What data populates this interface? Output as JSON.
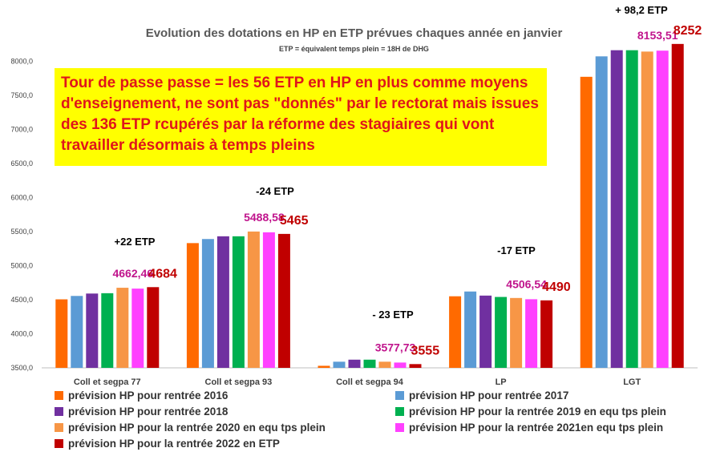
{
  "title": "Evolution des dotations en HP en ETP prévues chaques année en janvier",
  "subtitle": "ETP = équivalent temps plein = 18H de DHG",
  "note": "Tour de passe passe =  les 56 ETP en HP en plus comme moyens d'enseignement, ne sont pas \"donnés\" par le rectorat mais issues des 136 ETP rcupérés par la réforme des stagiaires qui vont travailler désormais à temps pleins",
  "chart_data": {
    "type": "bar",
    "title": "Evolution des dotations en HP en ETP prévues chaques année en janvier",
    "ylim": [
      3500,
      8250
    ],
    "yticks": [
      "3500,0",
      "4000,0",
      "4500,0",
      "5000,0",
      "5500,0",
      "6000,0",
      "6500,0",
      "7000,0",
      "7500,0",
      "8000,0"
    ],
    "grid": false,
    "legend_position": "bottom",
    "categories": [
      "Coll et segpa 77",
      "Coll et segpa 93",
      "Coll et segpa 94",
      "LP",
      "LGT"
    ],
    "series": [
      {
        "name": "prévision HP  pour rentrée 2016",
        "color": "#ff6a00",
        "values": [
          4505,
          5330,
          3530,
          4550,
          7770
        ]
      },
      {
        "name": "prévision HP  pour rentrée 2017",
        "color": "#5b9bd5",
        "values": [
          4555,
          5390,
          3590,
          4620,
          8070
        ]
      },
      {
        "name": "prévision HP  pour rentrée 2018",
        "color": "#7030a0",
        "values": [
          4590,
          5430,
          3620,
          4560,
          8160
        ]
      },
      {
        "name": "prévision HP pour la rentrée 2019 en equ tps plein",
        "color": "#00b050",
        "values": [
          4595,
          5430,
          3620,
          4540,
          8160
        ]
      },
      {
        "name": "prévision HP pour la rentrée 2020 en equ tps plein",
        "color": "#f79646",
        "values": [
          4675,
          5500,
          3590,
          4525,
          8140
        ]
      },
      {
        "name": "prévision HP pour la rentrée 2021en equ tps plein",
        "color": "#ff40ff",
        "values": [
          4662.46,
          5488.58,
          3577.73,
          4506.54,
          8153.51
        ]
      },
      {
        "name": "prévision HP pour la rentrée 2022 en ETP",
        "color": "#c00000",
        "values": [
          4684,
          5465,
          3555,
          4490,
          8252
        ]
      }
    ],
    "data_labels": [
      {
        "category": 0,
        "text": "4662,46",
        "series": 5,
        "color": "#c0148c"
      },
      {
        "category": 0,
        "text": "4684",
        "series": 6,
        "color": "#c00000"
      },
      {
        "category": 1,
        "text": "5488,58",
        "series": 5,
        "color": "#c0148c"
      },
      {
        "category": 1,
        "text": "5465",
        "series": 6,
        "color": "#c00000"
      },
      {
        "category": 2,
        "text": "3577,73",
        "series": 5,
        "color": "#c0148c"
      },
      {
        "category": 2,
        "text": "3555",
        "series": 6,
        "color": "#c00000"
      },
      {
        "category": 3,
        "text": "4506,54",
        "series": 5,
        "color": "#c0148c"
      },
      {
        "category": 3,
        "text": "4490",
        "series": 6,
        "color": "#c00000"
      },
      {
        "category": 4,
        "text": "8153,51",
        "series": 5,
        "color": "#c0148c"
      },
      {
        "category": 4,
        "text": "8252",
        "series": 6,
        "color": "#c00000"
      }
    ],
    "annotations": [
      {
        "category": 0,
        "text": "+22 ETP"
      },
      {
        "category": 1,
        "text": "-24 ETP"
      },
      {
        "category": 2,
        "text": "- 23 ETP"
      },
      {
        "category": 3,
        "text": "-17 ETP"
      },
      {
        "category": 4,
        "text": "+ 98,2 ETP"
      }
    ]
  }
}
